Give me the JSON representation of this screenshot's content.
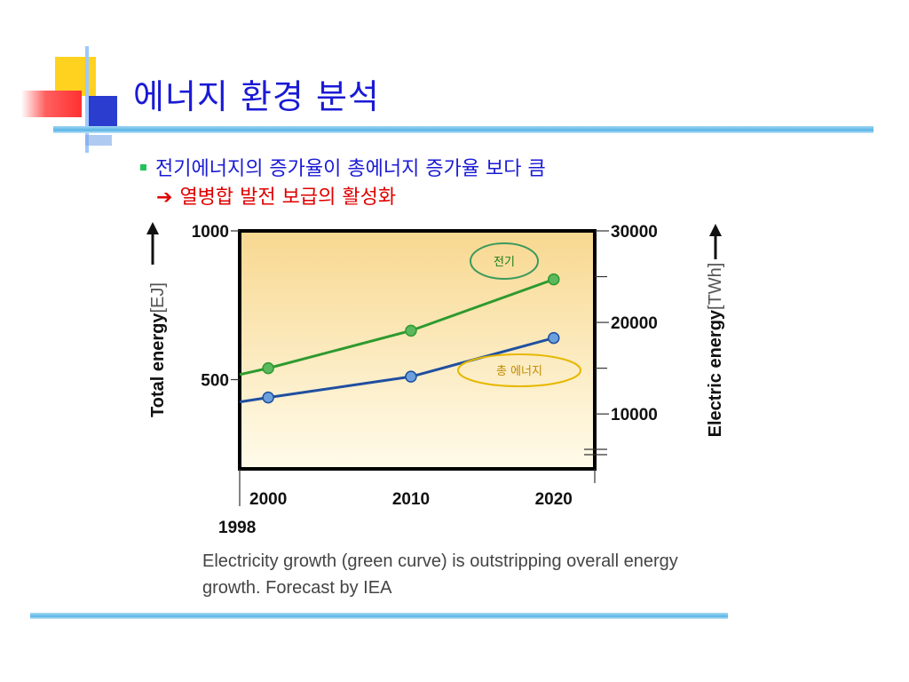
{
  "slide": {
    "title": "에너지 환경 분석",
    "bullet": "전기에너지의 증가율이 총에너지 증가율 보다 큼",
    "sub_arrow": "➔",
    "sub_point": "열병합 발전 보급의 활성화",
    "caption": "Electricity growth (green curve) is outstripping overall energy growth. Forecast by IEA",
    "colors": {
      "title": "#1a1ad6",
      "sub_point": "#e00000",
      "accent_rule": "#5ab4e6"
    }
  },
  "chart_data": {
    "type": "line",
    "x": [
      2000,
      2010,
      2020
    ],
    "x_ticks": [
      "2000",
      "2010",
      "2020"
    ],
    "x_origin_label": "1998",
    "xlim": [
      1998,
      2023
    ],
    "y_left": {
      "label_bold": "Total energy",
      "label_unit": "[EJ]",
      "ticks": [
        "1000",
        "500"
      ],
      "tick_values": [
        1000,
        500
      ],
      "range": [
        200,
        1000
      ]
    },
    "y_right": {
      "label_bold": "Electric energy",
      "label_unit": "[TWh]",
      "ticks": [
        "30000",
        "20000",
        "10000"
      ],
      "tick_values": [
        30000,
        20000,
        10000
      ],
      "range": [
        4000,
        30000
      ]
    },
    "series": [
      {
        "name": "전기",
        "axis": "right",
        "color": "#2e9a2e",
        "marker_color": "#5cb85c",
        "label_border": "#3c9a5c",
        "label_color": "#1a7a1a",
        "values": [
          15000,
          19100,
          24700
        ],
        "line_start": [
          1998,
          14300
        ]
      },
      {
        "name": "총 에너지",
        "axis": "left",
        "color": "#1f4fa0",
        "marker_color": "#6aa0dc",
        "label_border": "#e6b800",
        "label_color": "#c08a00",
        "values": [
          440,
          510,
          640
        ],
        "line_start": [
          1998,
          425
        ]
      }
    ],
    "background": {
      "top": "#f8d890",
      "bottom": "#fffbea"
    },
    "grid": false
  }
}
